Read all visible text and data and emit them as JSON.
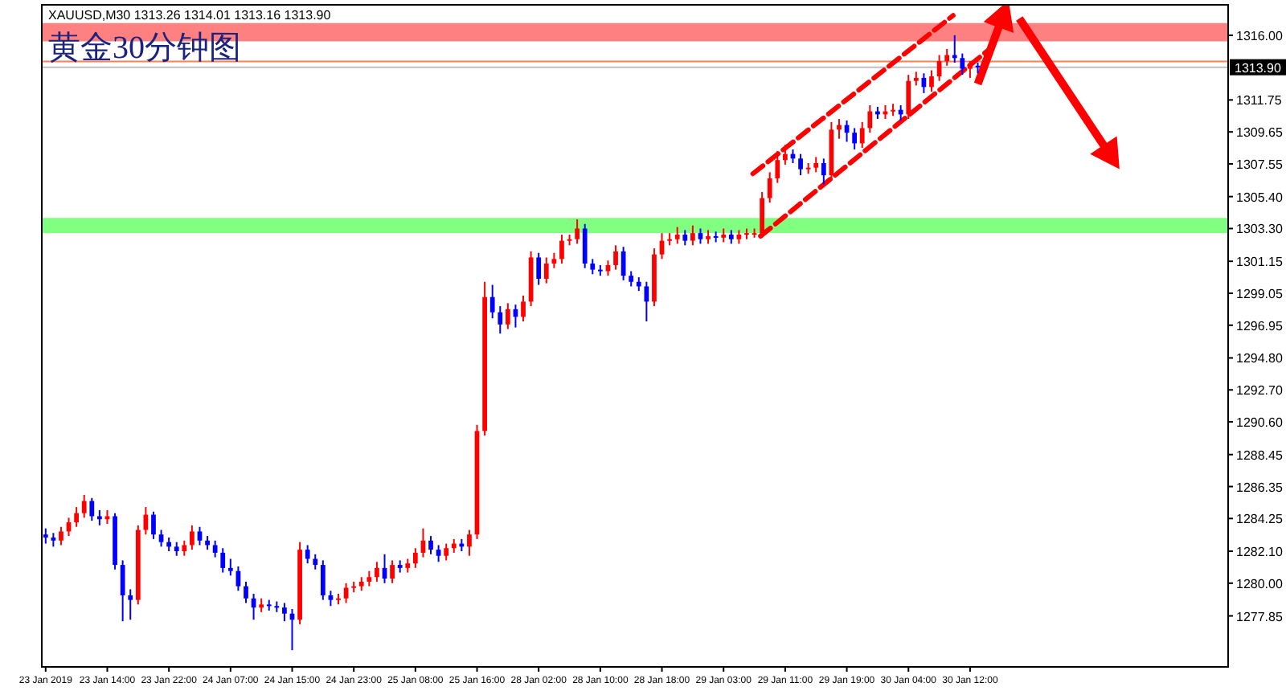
{
  "chart_data": {
    "type": "candlestick",
    "title": "黄金30分钟图",
    "subtitle": "XAUUSD,M30  1313.26 1314.01 1313.16 1313.90",
    "categories": [
      "23 Jan 2019",
      null,
      null,
      null,
      null,
      null,
      null,
      null,
      "23 Jan 14:00",
      null,
      null,
      null,
      null,
      null,
      null,
      null,
      "23 Jan 22:00",
      null,
      null,
      null,
      null,
      null,
      null,
      null,
      "24 Jan 07:00",
      null,
      null,
      null,
      null,
      null,
      null,
      null,
      "24 Jan 15:00",
      null,
      null,
      null,
      null,
      null,
      null,
      null,
      "24 Jan 23:00",
      null,
      null,
      null,
      null,
      null,
      null,
      null,
      "25 Jan 08:00",
      null,
      null,
      null,
      null,
      null,
      null,
      null,
      "25 Jan 16:00",
      null,
      null,
      null,
      null,
      null,
      null,
      null,
      "28 Jan 02:00",
      null,
      null,
      null,
      null,
      null,
      null,
      null,
      "28 Jan 10:00",
      null,
      null,
      null,
      null,
      null,
      null,
      null,
      "28 Jan 18:00",
      null,
      null,
      null,
      null,
      null,
      null,
      null,
      "29 Jan 03:00",
      null,
      null,
      null,
      null,
      null,
      null,
      null,
      "29 Jan 11:00",
      null,
      null,
      null,
      null,
      null,
      null,
      null,
      "29 Jan 19:00",
      null,
      null,
      null,
      null,
      null,
      null,
      null,
      "30 Jan 04:00",
      null,
      null,
      null,
      null,
      null,
      null,
      null,
      "30 Jan 12:00",
      null,
      null,
      null,
      null,
      null,
      null,
      null,
      null,
      null,
      null,
      null,
      null,
      null,
      null,
      null,
      null,
      null,
      null,
      null,
      null,
      null,
      null,
      null,
      null,
      null,
      null,
      null,
      null,
      null,
      null,
      null,
      null,
      null
    ],
    "ohlc": [
      [
        1283.2,
        1283.6,
        1282.6,
        1283.0
      ],
      [
        1283.0,
        1283.3,
        1282.4,
        1282.8
      ],
      [
        1282.8,
        1283.7,
        1282.5,
        1283.4
      ],
      [
        1283.4,
        1284.3,
        1283.1,
        1284.0
      ],
      [
        1284.0,
        1285.0,
        1283.7,
        1284.6
      ],
      [
        1284.6,
        1285.8,
        1284.3,
        1285.4
      ],
      [
        1285.4,
        1285.6,
        1284.1,
        1284.4
      ],
      [
        1284.4,
        1284.8,
        1283.8,
        1284.2
      ],
      [
        1284.2,
        1284.8,
        1283.9,
        1284.4
      ],
      [
        1284.4,
        1284.6,
        1280.9,
        1281.2
      ],
      [
        1281.2,
        1281.5,
        1277.5,
        1279.2
      ],
      [
        1279.2,
        1279.6,
        1277.6,
        1278.9
      ],
      [
        1278.9,
        1283.8,
        1278.6,
        1283.5
      ],
      [
        1283.5,
        1285.0,
        1283.2,
        1284.5
      ],
      [
        1284.5,
        1284.7,
        1282.9,
        1283.2
      ],
      [
        1283.2,
        1283.5,
        1282.4,
        1282.7
      ],
      [
        1282.7,
        1283.0,
        1282.1,
        1282.4
      ],
      [
        1282.4,
        1282.7,
        1281.8,
        1282.1
      ],
      [
        1282.1,
        1282.8,
        1281.8,
        1282.5
      ],
      [
        1282.5,
        1283.8,
        1282.2,
        1283.4
      ],
      [
        1283.4,
        1283.7,
        1282.5,
        1282.8
      ],
      [
        1282.8,
        1283.1,
        1282.2,
        1282.5
      ],
      [
        1282.5,
        1282.8,
        1281.7,
        1282.0
      ],
      [
        1282.0,
        1282.3,
        1280.7,
        1281.0
      ],
      [
        1281.0,
        1281.6,
        1280.5,
        1280.8
      ],
      [
        1280.8,
        1281.1,
        1279.5,
        1279.8
      ],
      [
        1279.8,
        1280.1,
        1278.7,
        1279.0
      ],
      [
        1279.0,
        1279.3,
        1277.6,
        1278.4
      ],
      [
        1278.4,
        1279.0,
        1278.1,
        1278.6
      ],
      [
        1278.6,
        1278.9,
        1278.2,
        1278.5
      ],
      [
        1278.5,
        1278.8,
        1278.1,
        1278.4
      ],
      [
        1278.4,
        1278.7,
        1277.5,
        1278.0
      ],
      [
        1278.0,
        1278.3,
        1275.6,
        1277.6
      ],
      [
        1277.6,
        1282.7,
        1277.3,
        1282.2
      ],
      [
        1282.2,
        1282.5,
        1281.3,
        1281.6
      ],
      [
        1281.6,
        1281.9,
        1280.9,
        1281.2
      ],
      [
        1281.2,
        1281.5,
        1278.9,
        1279.2
      ],
      [
        1279.2,
        1279.5,
        1278.5,
        1278.9
      ],
      [
        1278.9,
        1279.3,
        1278.6,
        1279.0
      ],
      [
        1279.0,
        1280.0,
        1278.7,
        1279.7
      ],
      [
        1279.7,
        1280.1,
        1279.4,
        1279.8
      ],
      [
        1279.8,
        1280.4,
        1279.5,
        1280.1
      ],
      [
        1280.1,
        1280.8,
        1279.8,
        1280.4
      ],
      [
        1280.4,
        1281.4,
        1280.1,
        1281.0
      ],
      [
        1281.0,
        1281.9,
        1280.0,
        1280.3
      ],
      [
        1280.3,
        1281.5,
        1280.0,
        1281.2
      ],
      [
        1281.2,
        1281.5,
        1280.7,
        1281.0
      ],
      [
        1281.0,
        1281.6,
        1280.7,
        1281.3
      ],
      [
        1281.3,
        1282.3,
        1281.0,
        1282.0
      ],
      [
        1282.0,
        1283.6,
        1281.7,
        1282.8
      ],
      [
        1282.8,
        1283.1,
        1281.9,
        1282.2
      ],
      [
        1282.2,
        1282.5,
        1281.4,
        1281.8
      ],
      [
        1281.8,
        1282.6,
        1281.5,
        1282.3
      ],
      [
        1282.3,
        1282.9,
        1282.0,
        1282.6
      ],
      [
        1282.6,
        1282.9,
        1282.1,
        1282.4
      ],
      [
        1282.4,
        1283.5,
        1281.8,
        1283.2
      ],
      [
        1283.2,
        1290.4,
        1282.9,
        1290.0
      ],
      [
        1290.0,
        1299.8,
        1289.7,
        1298.8
      ],
      [
        1298.8,
        1299.6,
        1297.4,
        1297.8
      ],
      [
        1297.8,
        1298.2,
        1296.4,
        1297.0
      ],
      [
        1297.0,
        1298.4,
        1296.7,
        1298.0
      ],
      [
        1298.0,
        1298.3,
        1296.8,
        1297.5
      ],
      [
        1297.5,
        1298.9,
        1297.2,
        1298.5
      ],
      [
        1298.5,
        1301.8,
        1298.2,
        1301.4
      ],
      [
        1301.4,
        1301.7,
        1299.6,
        1300.0
      ],
      [
        1300.0,
        1301.4,
        1299.7,
        1301.0
      ],
      [
        1301.0,
        1301.7,
        1300.7,
        1301.3
      ],
      [
        1301.3,
        1302.9,
        1301.0,
        1302.5
      ],
      [
        1302.5,
        1302.9,
        1302.2,
        1302.6
      ],
      [
        1302.6,
        1303.9,
        1302.3,
        1303.3
      ],
      [
        1303.3,
        1303.6,
        1300.7,
        1301.0
      ],
      [
        1301.0,
        1301.3,
        1300.3,
        1300.6
      ],
      [
        1300.6,
        1300.9,
        1300.2,
        1300.5
      ],
      [
        1300.5,
        1301.2,
        1300.2,
        1300.9
      ],
      [
        1300.9,
        1302.2,
        1300.6,
        1301.8
      ],
      [
        1301.8,
        1302.1,
        1299.9,
        1300.2
      ],
      [
        1300.2,
        1300.5,
        1299.5,
        1299.8
      ],
      [
        1299.8,
        1300.1,
        1299.2,
        1299.5
      ],
      [
        1299.5,
        1299.8,
        1297.2,
        1298.5
      ],
      [
        1298.5,
        1302.0,
        1298.2,
        1301.6
      ],
      [
        1301.6,
        1303.0,
        1301.3,
        1302.5
      ],
      [
        1302.5,
        1303.0,
        1302.2,
        1302.6
      ],
      [
        1302.6,
        1303.4,
        1302.3,
        1302.9
      ],
      [
        1302.9,
        1303.2,
        1302.2,
        1302.5
      ],
      [
        1302.5,
        1303.5,
        1302.2,
        1303.0
      ],
      [
        1303.0,
        1303.3,
        1302.3,
        1302.6
      ],
      [
        1302.6,
        1303.2,
        1302.3,
        1302.8
      ],
      [
        1302.8,
        1303.1,
        1302.4,
        1302.7
      ],
      [
        1302.7,
        1303.3,
        1302.4,
        1302.9
      ],
      [
        1302.9,
        1303.2,
        1302.3,
        1302.6
      ],
      [
        1302.6,
        1303.2,
        1302.3,
        1302.9
      ],
      [
        1302.9,
        1303.3,
        1302.6,
        1303.0
      ],
      [
        1303.0,
        1303.3,
        1302.7,
        1303.0
      ],
      [
        1303.0,
        1305.7,
        1302.7,
        1305.3
      ],
      [
        1305.3,
        1307.0,
        1305.0,
        1306.6
      ],
      [
        1306.6,
        1308.4,
        1306.3,
        1307.8
      ],
      [
        1307.8,
        1308.8,
        1307.5,
        1308.2
      ],
      [
        1308.2,
        1308.5,
        1307.6,
        1307.9
      ],
      [
        1307.9,
        1308.2,
        1306.8,
        1307.2
      ],
      [
        1307.2,
        1307.6,
        1306.9,
        1307.3
      ],
      [
        1307.3,
        1308.0,
        1307.0,
        1307.6
      ],
      [
        1307.6,
        1307.9,
        1306.2,
        1306.8
      ],
      [
        1306.8,
        1310.3,
        1306.5,
        1309.8
      ],
      [
        1309.8,
        1310.5,
        1309.2,
        1310.1
      ],
      [
        1310.1,
        1310.4,
        1309.0,
        1309.6
      ],
      [
        1309.6,
        1309.9,
        1308.5,
        1308.9
      ],
      [
        1308.9,
        1310.3,
        1308.6,
        1309.9
      ],
      [
        1309.9,
        1311.4,
        1309.6,
        1311.0
      ],
      [
        1311.0,
        1311.3,
        1310.5,
        1310.8
      ],
      [
        1310.8,
        1311.4,
        1310.5,
        1311.0
      ],
      [
        1311.0,
        1311.5,
        1310.7,
        1311.1
      ],
      [
        1311.1,
        1311.4,
        1310.4,
        1310.8
      ],
      [
        1310.8,
        1313.4,
        1310.5,
        1313.0
      ],
      [
        1313.0,
        1313.6,
        1312.7,
        1313.2
      ],
      [
        1313.2,
        1313.5,
        1312.2,
        1312.6
      ],
      [
        1312.6,
        1313.7,
        1312.3,
        1313.3
      ],
      [
        1313.3,
        1314.7,
        1313.0,
        1314.3
      ],
      [
        1314.3,
        1315.1,
        1314.0,
        1314.7
      ],
      [
        1314.7,
        1316.0,
        1314.2,
        1314.5
      ],
      [
        1314.5,
        1314.8,
        1313.4,
        1313.8
      ],
      [
        1313.8,
        1314.3,
        1313.2,
        1314.0
      ],
      [
        1314.0,
        1314.2,
        1313.5,
        1313.9
      ],
      null,
      null,
      null,
      null,
      null,
      null,
      null,
      null,
      null,
      null,
      null,
      null,
      null,
      null,
      null,
      null,
      null,
      null,
      null,
      null,
      null,
      null,
      null,
      null,
      null,
      null,
      null,
      null,
      null,
      null,
      null,
      null
    ],
    "ylim": [
      1274.5,
      1318.0
    ],
    "yticks": [
      {
        "value": 1277.85,
        "label": "1277.85"
      },
      {
        "value": 1280.0,
        "label": "1280.00"
      },
      {
        "value": 1282.1,
        "label": "1282.10"
      },
      {
        "value": 1284.25,
        "label": "1284.25"
      },
      {
        "value": 1286.35,
        "label": "1286.35"
      },
      {
        "value": 1288.45,
        "label": "1288.45"
      },
      {
        "value": 1290.6,
        "label": "1290.60"
      },
      {
        "value": 1292.7,
        "label": "1292.70"
      },
      {
        "value": 1294.8,
        "label": "1294.80"
      },
      {
        "value": 1296.95,
        "label": "1296.95"
      },
      {
        "value": 1299.05,
        "label": "1299.05"
      },
      {
        "value": 1301.15,
        "label": "1301.15"
      },
      {
        "value": 1303.3,
        "label": "1303.30"
      },
      {
        "value": 1305.4,
        "label": "1305.40"
      },
      {
        "value": 1307.55,
        "label": "1307.55"
      },
      {
        "value": 1309.65,
        "label": "1309.65"
      },
      {
        "value": 1311.75,
        "label": "1311.75"
      },
      {
        "value": 1316.0,
        "label": "1316.00"
      }
    ],
    "bands": [
      {
        "axis": "y",
        "from": 1315.6,
        "to": 1316.8,
        "label": null,
        "color": "#ff8080"
      },
      {
        "axis": "y",
        "from": 1303.0,
        "to": 1304.0,
        "label": null,
        "color": "#80ff80"
      }
    ],
    "ref_lines": [
      {
        "axis": "y",
        "value": 1314.28,
        "label": null,
        "color": "#ff7f50"
      },
      {
        "axis": "y",
        "value": 1313.9,
        "label": "1313.90",
        "color": "#c0c0c0"
      }
    ]
  }
}
